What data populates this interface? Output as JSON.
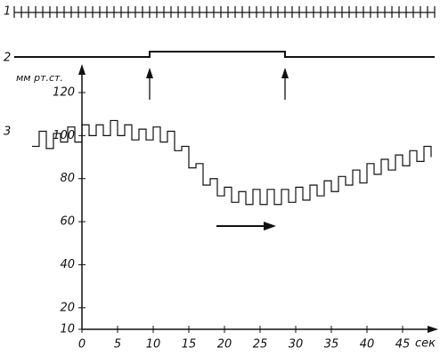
{
  "chart_data": {
    "type": "line",
    "y_label": "мм рт.ст.",
    "x_label": "сек",
    "xlim": [
      -9.5,
      49.5
    ],
    "xticks": [
      0,
      5,
      10,
      15,
      20,
      25,
      30,
      35,
      40,
      45
    ],
    "ylim": [
      10,
      125
    ],
    "yticks": [
      10,
      20,
      40,
      60,
      80,
      100,
      120
    ],
    "time_marker": {
      "label": "1",
      "interval": 1
    },
    "signal": {
      "label": "2",
      "x": [
        -9.5,
        9.5,
        9.5,
        28.5,
        28.5,
        49.5
      ],
      "level": [
        0,
        0,
        1,
        1,
        0,
        0
      ]
    },
    "series": [
      {
        "name": "3",
        "color": "#111111",
        "x": [
          -7,
          -6,
          -5,
          -4,
          -3,
          -2,
          -1,
          0,
          1,
          2,
          3,
          4,
          5,
          6,
          7,
          8,
          9,
          10,
          11,
          12,
          13,
          14,
          15,
          16,
          17,
          18,
          19,
          20,
          21,
          22,
          23,
          24,
          25,
          26,
          27,
          28,
          29,
          30,
          31,
          32,
          33,
          34,
          35,
          36,
          37,
          38,
          39,
          40,
          41,
          42,
          43,
          44,
          45,
          46,
          47,
          48,
          49
        ],
        "values": [
          95,
          102,
          94,
          101,
          97,
          104,
          97,
          105,
          100,
          105,
          100,
          107,
          100,
          105,
          98,
          103,
          98,
          104,
          97,
          102,
          93,
          95,
          85,
          87,
          77,
          80,
          72,
          76,
          69,
          74,
          68,
          75,
          68,
          75,
          68,
          75,
          69,
          76,
          70,
          77,
          72,
          79,
          74,
          81,
          77,
          84,
          78,
          87,
          82,
          89,
          84,
          91,
          86,
          93,
          88,
          95,
          90
        ]
      }
    ]
  }
}
